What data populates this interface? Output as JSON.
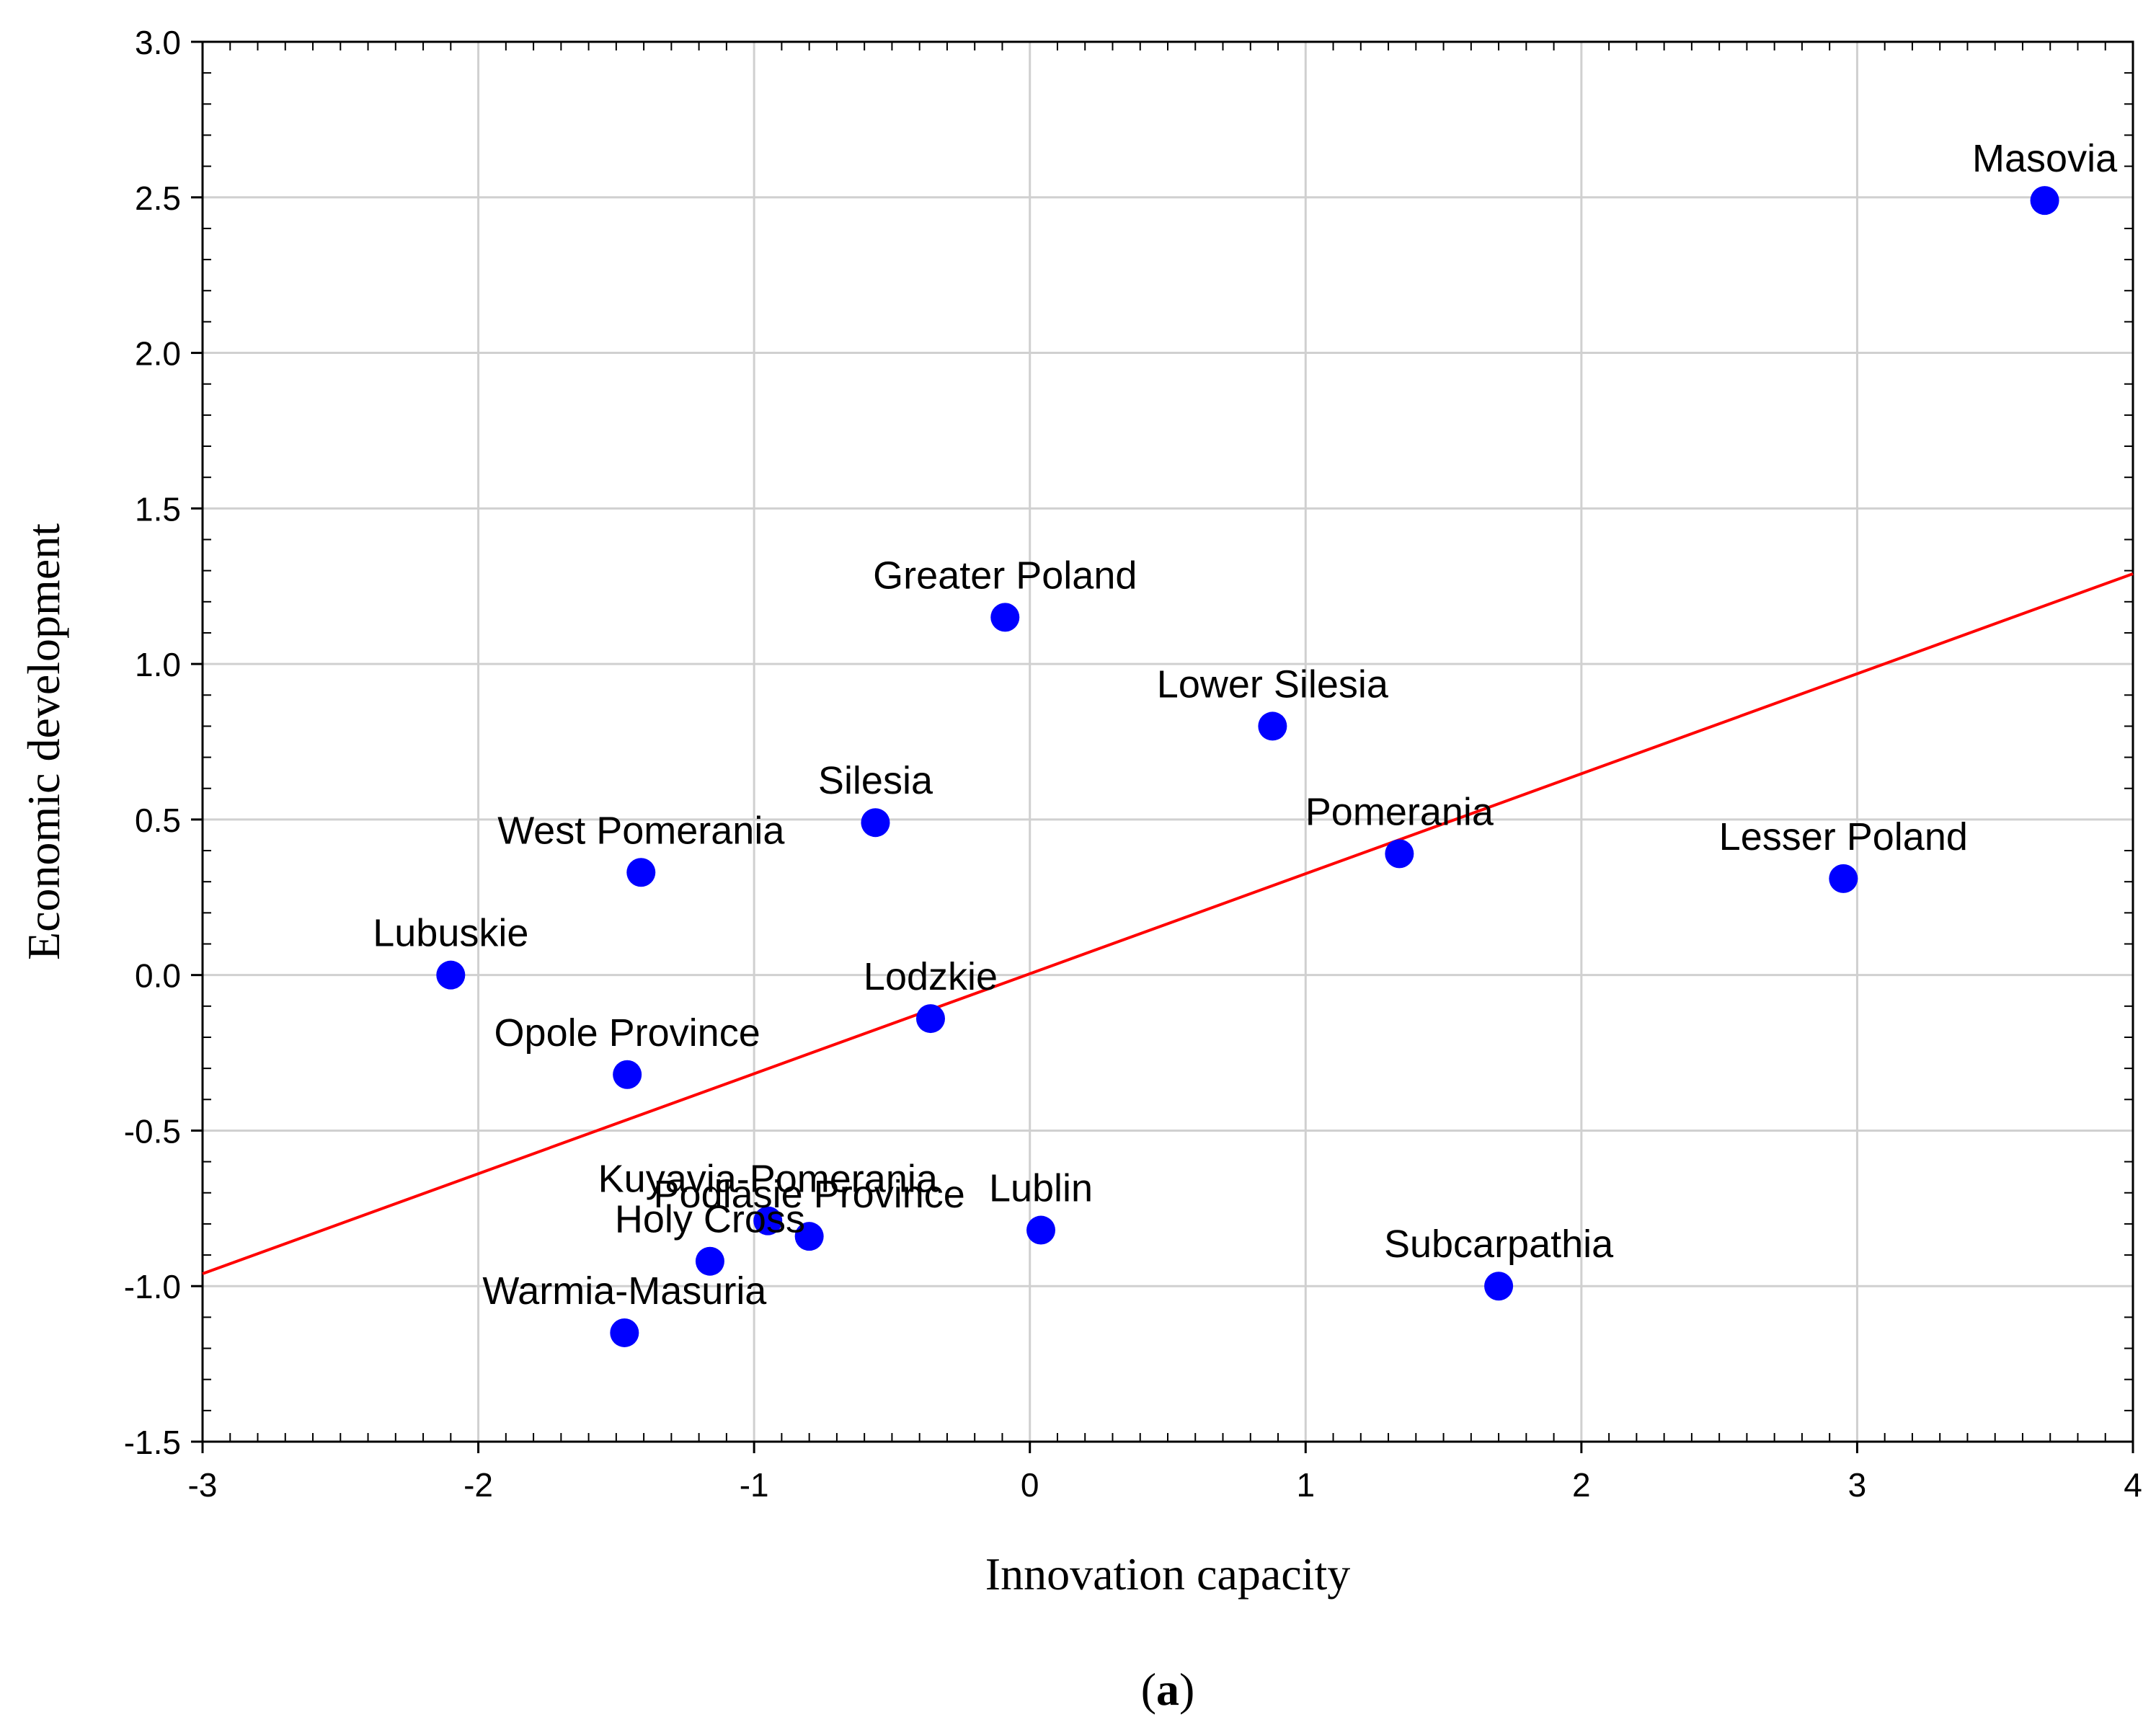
{
  "chart_data": {
    "type": "scatter",
    "xlabel": "Innovation capacity",
    "ylabel": "Economic development",
    "caption_prefix": "(",
    "caption_letter": "a",
    "caption_suffix": ")",
    "xlim": [
      -3,
      4
    ],
    "ylim": [
      -1.5,
      3.0
    ],
    "x_ticks": [
      -3,
      -2,
      -1,
      0,
      1,
      2,
      3,
      4
    ],
    "x_tick_labels": [
      "-3",
      "-2",
      "-1",
      "0",
      "1",
      "2",
      "3",
      "4"
    ],
    "y_ticks": [
      -1.5,
      -1.0,
      -0.5,
      0.0,
      0.5,
      1.0,
      1.5,
      2.0,
      2.5,
      3.0
    ],
    "y_tick_labels": [
      "-1.5",
      "-1.0",
      "-0.5",
      "0.0",
      "0.5",
      "1.0",
      "1.5",
      "2.0",
      "2.5",
      "3.0"
    ],
    "grid": true,
    "point_color": "#0000ff",
    "trend_color": "#ff0000",
    "points": [
      {
        "label": "Masovia",
        "x": 3.68,
        "y": 2.49
      },
      {
        "label": "Greater Poland",
        "x": -0.09,
        "y": 1.15
      },
      {
        "label": "Lower Silesia",
        "x": 0.88,
        "y": 0.8
      },
      {
        "label": "Silesia",
        "x": -0.56,
        "y": 0.49
      },
      {
        "label": "West Pomerania",
        "x": -1.41,
        "y": 0.33
      },
      {
        "label": "Pomerania",
        "x": 1.34,
        "y": 0.39
      },
      {
        "label": "Lesser Poland",
        "x": 2.95,
        "y": 0.31
      },
      {
        "label": "Lubuskie",
        "x": -2.1,
        "y": 0.0
      },
      {
        "label": "Lodzkie",
        "x": -0.36,
        "y": -0.14
      },
      {
        "label": "Opole Province",
        "x": -1.46,
        "y": -0.32
      },
      {
        "label": "Kuyavia-Pomerania",
        "x": -0.95,
        "y": -0.79
      },
      {
        "label": "Podlasie Province",
        "x": -0.8,
        "y": -0.84
      },
      {
        "label": "Lublin",
        "x": 0.04,
        "y": -0.82
      },
      {
        "label": "Holy Cross",
        "x": -1.16,
        "y": -0.92
      },
      {
        "label": "Subcarpathia",
        "x": 1.7,
        "y": -1.0
      },
      {
        "label": "Warmia-Masuria",
        "x": -1.47,
        "y": -1.15
      }
    ],
    "trend_line": {
      "x": [
        -3,
        4
      ],
      "y": [
        -0.96,
        1.29
      ]
    }
  }
}
